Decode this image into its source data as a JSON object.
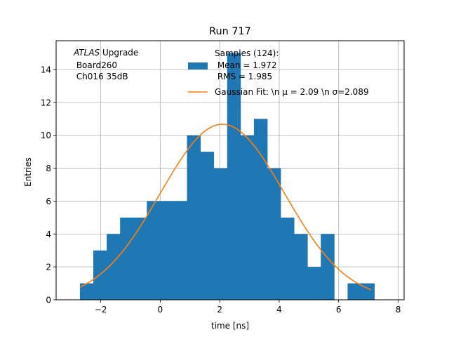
{
  "chart_data": {
    "type": "bar",
    "title": "Run 717",
    "xlabel": "time [ns]",
    "ylabel": "Entries",
    "xlim": [
      -3.5,
      8.2
    ],
    "ylim": [
      0,
      15.75
    ],
    "grid": true,
    "xticks": [
      -2,
      0,
      2,
      4,
      6,
      8
    ],
    "xtick_labels": [
      "−2",
      "0",
      "2",
      "4",
      "6",
      "8"
    ],
    "yticks": [
      0,
      2,
      4,
      6,
      8,
      10,
      12,
      14
    ],
    "yticks_labels": [
      "0",
      "2",
      "4",
      "6",
      "8",
      "10",
      "12",
      "14"
    ],
    "bin_width": 0.45,
    "bins": [
      {
        "x0": -2.7,
        "count": 1
      },
      {
        "x0": -2.25,
        "count": 3
      },
      {
        "x0": -1.8,
        "count": 4
      },
      {
        "x0": -1.35,
        "count": 5
      },
      {
        "x0": -0.9,
        "count": 5
      },
      {
        "x0": -0.45,
        "count": 6
      },
      {
        "x0": 0.0,
        "count": 6
      },
      {
        "x0": 0.45,
        "count": 6
      },
      {
        "x0": 0.9,
        "count": 10
      },
      {
        "x0": 1.35,
        "count": 9
      },
      {
        "x0": 1.8,
        "count": 8
      },
      {
        "x0": 2.25,
        "count": 15
      },
      {
        "x0": 2.7,
        "count": 10
      },
      {
        "x0": 3.15,
        "count": 11
      },
      {
        "x0": 3.6,
        "count": 8
      },
      {
        "x0": 4.05,
        "count": 5
      },
      {
        "x0": 4.5,
        "count": 4
      },
      {
        "x0": 4.95,
        "count": 2
      },
      {
        "x0": 5.4,
        "count": 4
      },
      {
        "x0": 5.85,
        "count": 0
      },
      {
        "x0": 6.3,
        "count": 1
      },
      {
        "x0": 6.75,
        "count": 1
      }
    ],
    "fit": {
      "type": "gaussian",
      "mu": 2.09,
      "sigma": 2.089,
      "amplitude": 10.67,
      "x_range": [
        -2.7,
        7.1
      ]
    },
    "annotation": {
      "atlas": "ATLAS",
      "upgrade": " Upgrade",
      "lines": [
        " Board260",
        " Ch016 35dB"
      ]
    },
    "legend": {
      "placement": "top-right",
      "entries": [
        {
          "series": "histogram",
          "lines": [
            "Samples (124):",
            " Mean = 1.972",
            " RMS = 1.985"
          ]
        },
        {
          "series": "fit",
          "lines": [
            "Gaussian Fit: \\n μ = 2.09 \\n σ=2.089"
          ]
        }
      ]
    },
    "colors": {
      "bar": "#1f77b4",
      "fit": "#ff7f0e",
      "grid": "#b0b0b0",
      "axis": "#000000"
    }
  }
}
